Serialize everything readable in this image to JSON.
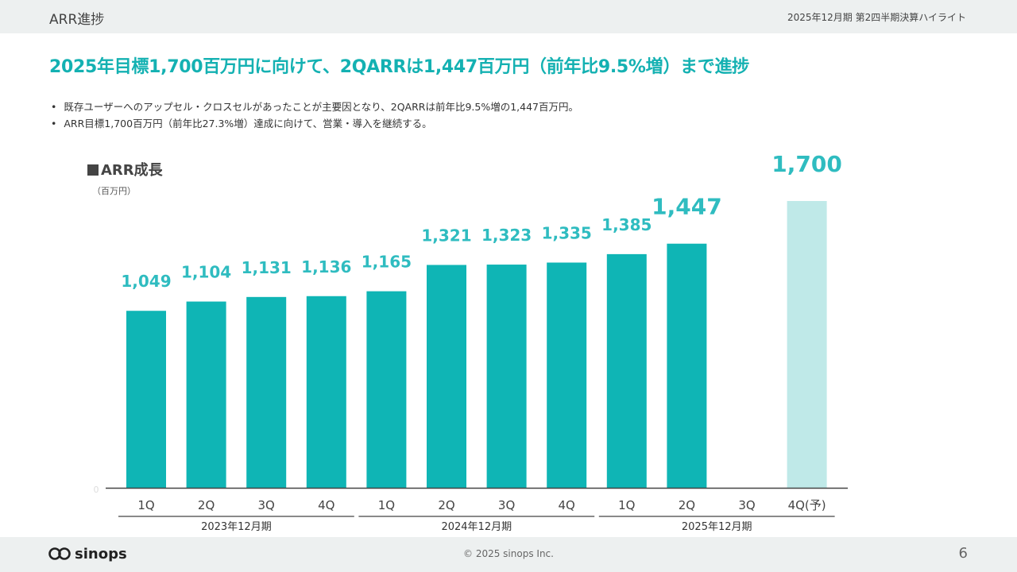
{
  "header": {
    "section": "ARR進捗",
    "period": "2025年12月期 第2四半期決算ハイライト"
  },
  "headline": "2025年目標1,700百万円に向けて、2QARRは1,447百万円（前年比9.5%増）まで進捗",
  "bullets": [
    "既存ユーザーへのアップセル・クロスセルがあったことが主要因となり、2QARRは前年比9.5%増の1,447百万円。",
    "ARR目標1,700百万円（前年比27.3%増）達成に向けて、営業・導入を継続する。"
  ],
  "chart_data": {
    "type": "bar",
    "title": "ARR成長",
    "unit": "（百万円）",
    "categories": [
      "1Q",
      "2Q",
      "3Q",
      "4Q",
      "1Q",
      "2Q",
      "3Q",
      "4Q",
      "1Q",
      "2Q",
      "3Q",
      "4Q(予)"
    ],
    "values": [
      1049,
      1104,
      1131,
      1136,
      1165,
      1321,
      1323,
      1335,
      1385,
      1447,
      null,
      1700
    ],
    "labels": [
      "1,049",
      "1,104",
      "1,131",
      "1,136",
      "1,165",
      "1,321",
      "1,323",
      "1,335",
      "1,385",
      "1,447",
      "",
      "1,700"
    ],
    "bar_kind": [
      "actual",
      "actual",
      "actual",
      "actual",
      "actual",
      "actual",
      "actual",
      "actual",
      "actual",
      "actual",
      "none",
      "forecast"
    ],
    "highlight": [
      false,
      false,
      false,
      false,
      false,
      false,
      false,
      false,
      false,
      true,
      false,
      true
    ],
    "groups": [
      {
        "label": "2023年12月期",
        "start": 0,
        "end": 3
      },
      {
        "label": "2024年12月期",
        "start": 4,
        "end": 7
      },
      {
        "label": "2025年12月期",
        "start": 8,
        "end": 11
      }
    ],
    "ylim": [
      0,
      1700
    ],
    "y_zero_label": "0",
    "grid": false,
    "colors": {
      "actual": "#0fb5b5",
      "forecast": "#bfe9e8",
      "label": "#2fbcc0",
      "label_outline": "#ffffff"
    }
  },
  "footer": {
    "logo": "sinops",
    "copyright": "© 2025 sinops Inc.",
    "page": "6"
  }
}
